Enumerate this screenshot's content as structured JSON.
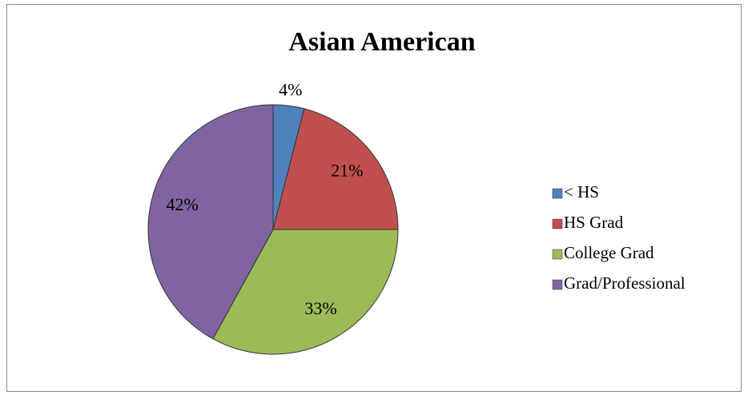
{
  "chart_data": {
    "type": "pie",
    "title": "Asian American",
    "categories": [
      "< HS",
      "HS Grad",
      "College Grad",
      "Grad/Professional"
    ],
    "values": [
      4,
      21,
      33,
      42
    ],
    "value_labels": [
      "4%",
      "21%",
      "33%",
      "42%"
    ],
    "colors": [
      "#4f81bd",
      "#c0504d",
      "#9bbb59",
      "#8064a2"
    ],
    "legend": "right"
  }
}
